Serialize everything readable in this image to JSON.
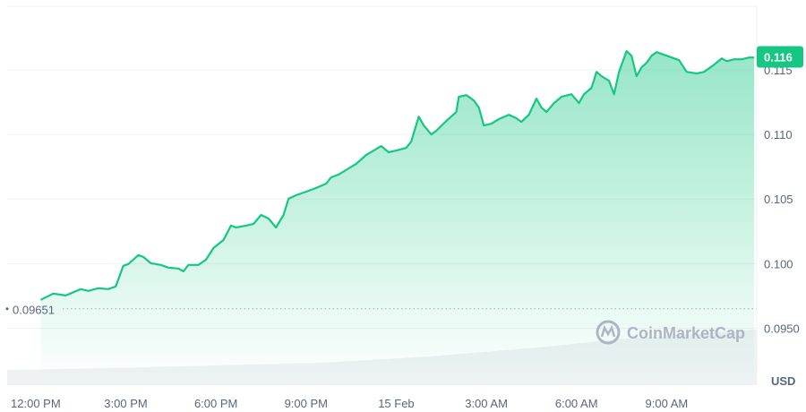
{
  "chart_data": {
    "type": "area",
    "title": "",
    "xlabel": "",
    "ylabel": "USD",
    "currency_label": "USD",
    "xlim": [
      "14 Feb 11:03",
      "15 Feb 12:00"
    ],
    "ylim": [
      0.0906,
      0.1204
    ],
    "grid": "horizontal",
    "line_color": "#16c784",
    "fill_color": "#16c784",
    "volume_color": "#eff2f5",
    "x_ticks": [
      "12:00 PM",
      "3:00 PM",
      "6:00 PM",
      "9:00 PM",
      "15 Feb",
      "3:00 AM",
      "6:00 AM",
      "9:00 AM"
    ],
    "x_tick_times": [
      "14 Feb 12:00",
      "14 Feb 15:00",
      "14 Feb 18:00",
      "14 Feb 21:00",
      "15 Feb 00:00",
      "15 Feb 03:00",
      "15 Feb 06:00",
      "15 Feb 09:00"
    ],
    "y_ticks": [
      0.095,
      0.1,
      0.105,
      0.11,
      0.115
    ],
    "y_tick_labels": [
      "0.0950",
      "0.100",
      "0.105",
      "0.110",
      "0.115"
    ],
    "reference_line": {
      "value": 0.09651,
      "label": "0.09651"
    },
    "current_price": {
      "value": 0.116,
      "label": "0.116",
      "color": "#16c784"
    },
    "watermark": "CoinMarketCap",
    "points": [
      [
        "14 Feb 12:10",
        0.0972
      ],
      [
        "14 Feb 12:35",
        0.09768
      ],
      [
        "14 Feb 13:00",
        0.09754
      ],
      [
        "14 Feb 13:30",
        0.09803
      ],
      [
        "14 Feb 13:45",
        0.09789
      ],
      [
        "14 Feb 14:05",
        0.0981
      ],
      [
        "14 Feb 14:25",
        0.09803
      ],
      [
        "14 Feb 14:40",
        0.09824
      ],
      [
        "14 Feb 14:55",
        0.09983
      ],
      [
        "14 Feb 15:05",
        0.09997
      ],
      [
        "14 Feb 15:25",
        0.10066
      ],
      [
        "14 Feb 15:35",
        0.10052
      ],
      [
        "14 Feb 15:50",
        0.10003
      ],
      [
        "14 Feb 16:10",
        0.0999
      ],
      [
        "14 Feb 16:25",
        0.09969
      ],
      [
        "14 Feb 16:45",
        0.09962
      ],
      [
        "14 Feb 16:55",
        0.09941
      ],
      [
        "14 Feb 17:05",
        0.0999
      ],
      [
        "14 Feb 17:25",
        0.0999
      ],
      [
        "14 Feb 17:40",
        0.10031
      ],
      [
        "14 Feb 17:55",
        0.10121
      ],
      [
        "14 Feb 18:15",
        0.10183
      ],
      [
        "14 Feb 18:30",
        0.10294
      ],
      [
        "14 Feb 18:40",
        0.1028
      ],
      [
        "14 Feb 19:00",
        0.10294
      ],
      [
        "14 Feb 19:15",
        0.10308
      ],
      [
        "14 Feb 19:30",
        0.10377
      ],
      [
        "14 Feb 19:45",
        0.10349
      ],
      [
        "14 Feb 20:00",
        0.1028
      ],
      [
        "14 Feb 20:15",
        0.10377
      ],
      [
        "14 Feb 20:25",
        0.10502
      ],
      [
        "14 Feb 20:40",
        0.10529
      ],
      [
        "14 Feb 21:05",
        0.10564
      ],
      [
        "14 Feb 21:20",
        0.10585
      ],
      [
        "14 Feb 21:40",
        0.10619
      ],
      [
        "14 Feb 21:50",
        0.10668
      ],
      [
        "14 Feb 22:05",
        0.10689
      ],
      [
        "14 Feb 22:25",
        0.10737
      ],
      [
        "14 Feb 22:40",
        0.10772
      ],
      [
        "14 Feb 23:00",
        0.10841
      ],
      [
        "14 Feb 23:15",
        0.10875
      ],
      [
        "14 Feb 23:30",
        0.1091
      ],
      [
        "14 Feb 23:45",
        0.10862
      ],
      [
        "15 Feb 00:00",
        0.10875
      ],
      [
        "15 Feb 00:20",
        0.10896
      ],
      [
        "15 Feb 00:30",
        0.10945
      ],
      [
        "15 Feb 00:45",
        0.11138
      ],
      [
        "15 Feb 00:55",
        0.11069
      ],
      [
        "15 Feb 01:10",
        0.11
      ],
      [
        "15 Feb 01:20",
        0.11028
      ],
      [
        "15 Feb 01:40",
        0.11104
      ],
      [
        "15 Feb 02:00",
        0.11173
      ],
      [
        "15 Feb 02:05",
        0.11291
      ],
      [
        "15 Feb 02:20",
        0.11304
      ],
      [
        "15 Feb 02:35",
        0.11263
      ],
      [
        "15 Feb 02:45",
        0.11208
      ],
      [
        "15 Feb 02:55",
        0.11069
      ],
      [
        "15 Feb 03:10",
        0.11083
      ],
      [
        "15 Feb 03:25",
        0.11118
      ],
      [
        "15 Feb 03:45",
        0.11152
      ],
      [
        "15 Feb 04:00",
        0.11125
      ],
      [
        "15 Feb 04:10",
        0.11097
      ],
      [
        "15 Feb 04:25",
        0.11152
      ],
      [
        "15 Feb 04:40",
        0.11277
      ],
      [
        "15 Feb 04:50",
        0.11208
      ],
      [
        "15 Feb 05:00",
        0.11173
      ],
      [
        "15 Feb 05:15",
        0.11242
      ],
      [
        "15 Feb 05:30",
        0.11291
      ],
      [
        "15 Feb 05:50",
        0.11311
      ],
      [
        "15 Feb 06:05",
        0.11242
      ],
      [
        "15 Feb 06:15",
        0.11311
      ],
      [
        "15 Feb 06:30",
        0.1136
      ],
      [
        "15 Feb 06:40",
        0.11484
      ],
      [
        "15 Feb 06:50",
        0.1145
      ],
      [
        "15 Feb 07:05",
        0.11415
      ],
      [
        "15 Feb 07:15",
        0.11311
      ],
      [
        "15 Feb 07:25",
        0.11484
      ],
      [
        "15 Feb 07:40",
        0.11644
      ],
      [
        "15 Feb 07:50",
        0.11609
      ],
      [
        "15 Feb 08:00",
        0.1145
      ],
      [
        "15 Feb 08:10",
        0.11519
      ],
      [
        "15 Feb 08:20",
        0.11554
      ],
      [
        "15 Feb 08:30",
        0.11609
      ],
      [
        "15 Feb 08:40",
        0.11637
      ],
      [
        "15 Feb 08:50",
        0.11623
      ],
      [
        "15 Feb 09:05",
        0.11602
      ],
      [
        "15 Feb 09:25",
        0.11574
      ],
      [
        "15 Feb 09:40",
        0.11484
      ],
      [
        "15 Feb 10:00",
        0.11471
      ],
      [
        "15 Feb 10:15",
        0.11484
      ],
      [
        "15 Feb 10:35",
        0.1154
      ],
      [
        "15 Feb 10:50",
        0.11588
      ],
      [
        "15 Feb 11:00",
        0.11567
      ],
      [
        "15 Feb 11:15",
        0.11581
      ],
      [
        "15 Feb 11:30",
        0.11581
      ],
      [
        "15 Feb 11:45",
        0.11595
      ],
      [
        "15 Feb 11:55",
        0.11595
      ]
    ]
  }
}
